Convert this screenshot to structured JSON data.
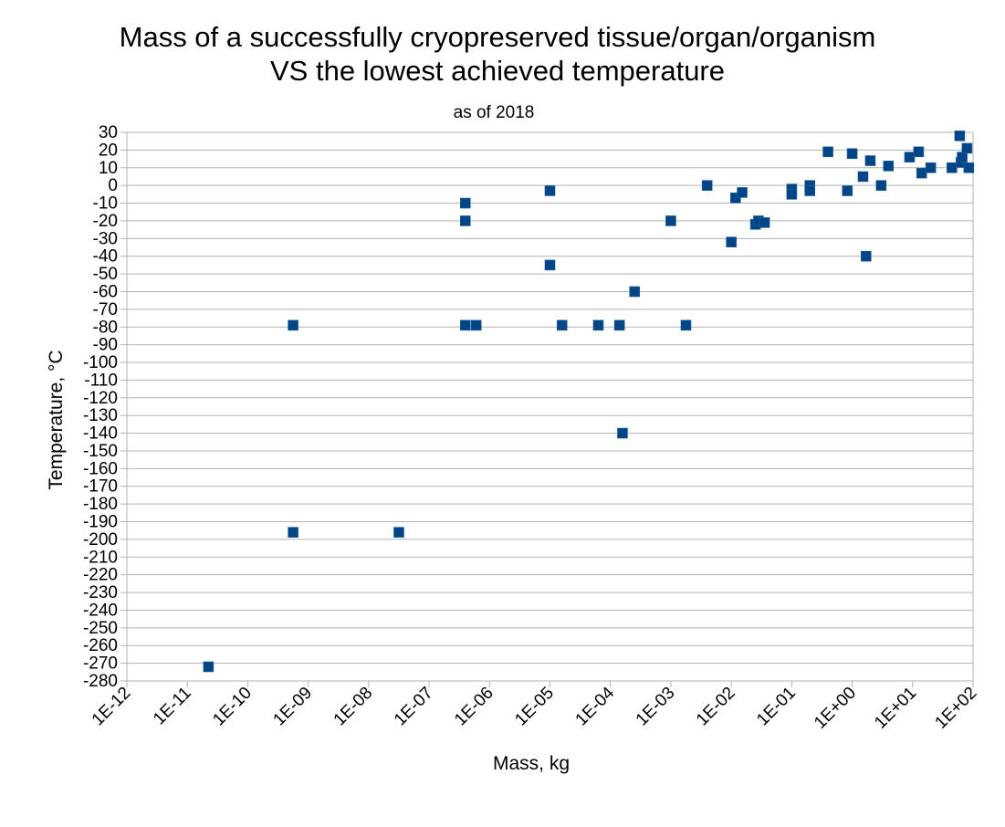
{
  "chart_data": {
    "type": "scatter",
    "title_line1": "Mass of a successfully cryopreserved tissue/organ/organism",
    "title_line2": "VS the lowest achieved temperature",
    "subtitle": "as of 2018",
    "xlabel": "Mass, kg",
    "ylabel": "Temperature, °C",
    "x_scale": "log10",
    "xlim_exp": [
      -12,
      2
    ],
    "ylim": [
      -280,
      30
    ],
    "y_step": 10,
    "grid": "horizontal",
    "x_tick_labels": [
      "1E-12",
      "1E-11",
      "1E-10",
      "1E-09",
      "1E-08",
      "1E-07",
      "1E-06",
      "1E-05",
      "1E-04",
      "1E-03",
      "1E-02",
      "1E-01",
      "1E+00",
      "1E+01",
      "1E+02"
    ],
    "marker_color": "#004586",
    "points": [
      {
        "log10_mass": -10.65,
        "temp": -272
      },
      {
        "log10_mass": -9.25,
        "temp": -79
      },
      {
        "log10_mass": -9.25,
        "temp": -196
      },
      {
        "log10_mass": -7.5,
        "temp": -196
      },
      {
        "log10_mass": -6.4,
        "temp": -10
      },
      {
        "log10_mass": -6.4,
        "temp": -20
      },
      {
        "log10_mass": -6.4,
        "temp": -79
      },
      {
        "log10_mass": -6.22,
        "temp": -79
      },
      {
        "log10_mass": -5.0,
        "temp": -3
      },
      {
        "log10_mass": -5.0,
        "temp": -45
      },
      {
        "log10_mass": -4.8,
        "temp": -79
      },
      {
        "log10_mass": -4.2,
        "temp": -79
      },
      {
        "log10_mass": -3.85,
        "temp": -79
      },
      {
        "log10_mass": -3.8,
        "temp": -140
      },
      {
        "log10_mass": -3.6,
        "temp": -60
      },
      {
        "log10_mass": -3.0,
        "temp": -20
      },
      {
        "log10_mass": -2.75,
        "temp": -79
      },
      {
        "log10_mass": -2.4,
        "temp": 0
      },
      {
        "log10_mass": -2.0,
        "temp": -32
      },
      {
        "log10_mass": -1.93,
        "temp": -7
      },
      {
        "log10_mass": -1.82,
        "temp": -4
      },
      {
        "log10_mass": -1.6,
        "temp": -22
      },
      {
        "log10_mass": -1.55,
        "temp": -20
      },
      {
        "log10_mass": -1.45,
        "temp": -21
      },
      {
        "log10_mass": -1.0,
        "temp": -2
      },
      {
        "log10_mass": -1.0,
        "temp": -5
      },
      {
        "log10_mass": -0.7,
        "temp": 0
      },
      {
        "log10_mass": -0.7,
        "temp": -3
      },
      {
        "log10_mass": -0.4,
        "temp": 19
      },
      {
        "log10_mass": -0.08,
        "temp": -3
      },
      {
        "log10_mass": 0.0,
        "temp": 18
      },
      {
        "log10_mass": 0.18,
        "temp": 5
      },
      {
        "log10_mass": 0.23,
        "temp": -40
      },
      {
        "log10_mass": 0.3,
        "temp": 14
      },
      {
        "log10_mass": 0.48,
        "temp": 0
      },
      {
        "log10_mass": 0.6,
        "temp": 11
      },
      {
        "log10_mass": 0.95,
        "temp": 16
      },
      {
        "log10_mass": 1.1,
        "temp": 19
      },
      {
        "log10_mass": 1.15,
        "temp": 7
      },
      {
        "log10_mass": 1.3,
        "temp": 10
      },
      {
        "log10_mass": 1.65,
        "temp": 10
      },
      {
        "log10_mass": 1.78,
        "temp": 28
      },
      {
        "log10_mass": 1.8,
        "temp": 13
      },
      {
        "log10_mass": 1.82,
        "temp": 16
      },
      {
        "log10_mass": 1.9,
        "temp": 21
      },
      {
        "log10_mass": 1.93,
        "temp": 10
      }
    ]
  }
}
